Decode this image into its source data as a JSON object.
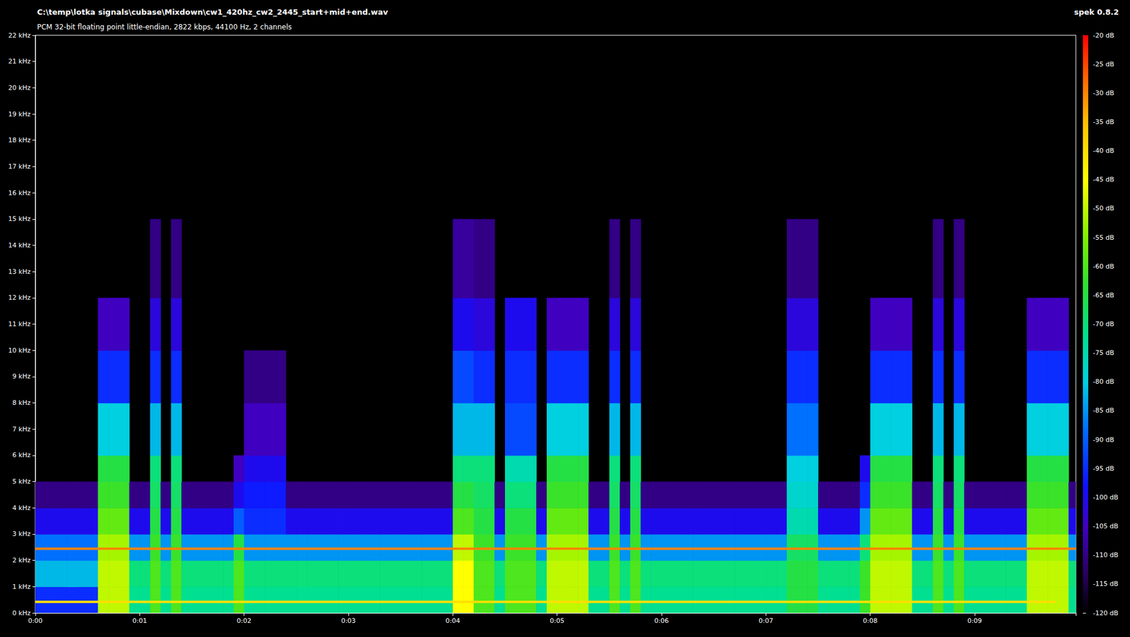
{
  "chart_data": {
    "type": "heatmap",
    "title": "C:\\temp\\lotka signals\\cubase\\Mixdown\\cw1_420hz_cw2_2445_start+mid+end.wav",
    "subtitle": "PCM 32-bit floating point little-endian, 2822 kbps, 44100 Hz, 2 channels",
    "software": "spek 0.8.2",
    "grid": false,
    "xlim": [
      0,
      9.97
    ],
    "xticks": [
      {
        "value": 0,
        "label": "0:00"
      },
      {
        "value": 1,
        "label": "0:01"
      },
      {
        "value": 2,
        "label": "0:02"
      },
      {
        "value": 3,
        "label": "0:03"
      },
      {
        "value": 4,
        "label": "0:04"
      },
      {
        "value": 5,
        "label": "0:05"
      },
      {
        "value": 6,
        "label": "0:06"
      },
      {
        "value": 7,
        "label": "0:07"
      },
      {
        "value": 8,
        "label": "0:08"
      },
      {
        "value": 9,
        "label": "0:09"
      }
    ],
    "ylim": [
      0,
      22
    ],
    "yticks": [
      {
        "value": 0,
        "label": "0 kHz"
      },
      {
        "value": 1,
        "label": "1 kHz"
      },
      {
        "value": 2,
        "label": "2 kHz"
      },
      {
        "value": 3,
        "label": "3 kHz"
      },
      {
        "value": 4,
        "label": "4 kHz"
      },
      {
        "value": 5,
        "label": "5 kHz"
      },
      {
        "value": 6,
        "label": "6 kHz"
      },
      {
        "value": 7,
        "label": "7 kHz"
      },
      {
        "value": 8,
        "label": "8 kHz"
      },
      {
        "value": 9,
        "label": "9 kHz"
      },
      {
        "value": 10,
        "label": "10 kHz"
      },
      {
        "value": 11,
        "label": "11 kHz"
      },
      {
        "value": 12,
        "label": "12 kHz"
      },
      {
        "value": 13,
        "label": "13 kHz"
      },
      {
        "value": 14,
        "label": "14 kHz"
      },
      {
        "value": 15,
        "label": "15 kHz"
      },
      {
        "value": 16,
        "label": "16 kHz"
      },
      {
        "value": 17,
        "label": "17 kHz"
      },
      {
        "value": 18,
        "label": "18 kHz"
      },
      {
        "value": 19,
        "label": "19 kHz"
      },
      {
        "value": 20,
        "label": "20 kHz"
      },
      {
        "value": 21,
        "label": "21 kHz"
      },
      {
        "value": 22,
        "label": "22 kHz"
      }
    ],
    "time_edges": [
      0,
      0.1,
      0.2,
      0.3,
      0.4,
      0.5,
      0.6,
      0.7,
      0.8,
      0.9,
      1,
      1.1,
      1.2,
      1.3,
      1.4,
      1.5,
      1.6,
      1.7,
      1.8,
      1.9,
      2,
      2.1,
      2.2,
      2.3,
      2.4,
      2.5,
      2.6,
      2.7,
      2.8,
      2.9,
      3,
      3.1,
      3.2,
      3.3,
      3.4,
      3.5,
      3.6,
      3.7,
      3.8,
      3.9,
      4,
      4.1,
      4.2,
      4.3,
      4.4,
      4.5,
      4.6,
      4.7,
      4.8,
      4.9,
      5,
      5.1,
      5.2,
      5.3,
      5.4,
      5.5,
      5.6,
      5.7,
      5.8,
      5.9,
      6,
      6.1,
      6.2,
      6.3,
      6.4,
      6.5,
      6.6,
      6.7,
      6.8,
      6.9,
      7,
      7.1,
      7.2,
      7.3,
      7.4,
      7.5,
      7.6,
      7.7,
      7.8,
      7.9,
      8,
      8.1,
      8.2,
      8.3,
      8.4,
      8.5,
      8.6,
      8.7,
      8.8,
      8.9,
      9,
      9.1,
      9.2,
      9.3,
      9.4,
      9.5,
      9.6,
      9.7,
      9.8,
      9.9,
      10
    ],
    "freq_edges": [
      0,
      1,
      2,
      3,
      4,
      5,
      6,
      8,
      10,
      12,
      15
    ],
    "db": [
      [
        -95,
        -95,
        -95,
        -95,
        -95,
        -95,
        -50,
        -50,
        -50,
        -72,
        -72,
        -60,
        -72,
        -60,
        -72,
        -72,
        -72,
        -72,
        -72,
        -60,
        -72,
        -72,
        -72,
        -72,
        -72,
        -72,
        -72,
        -72,
        -72,
        -72,
        -72,
        -72,
        -72,
        -72,
        -72,
        -72,
        -72,
        -72,
        -72,
        -72,
        -45,
        -45,
        -60,
        -60,
        -72,
        -60,
        -60,
        -60,
        -72,
        -50,
        -50,
        -50,
        -50,
        -72,
        -72,
        -60,
        -72,
        -60,
        -72,
        -72,
        -72,
        -72,
        -72,
        -72,
        -72,
        -72,
        -72,
        -72,
        -72,
        -72,
        -72,
        -72,
        -65,
        -65,
        -65,
        -72,
        -72,
        -72,
        -72,
        -62,
        -50,
        -50,
        -50,
        -50,
        -72,
        -72,
        -60,
        -72,
        -60,
        -72,
        -72,
        -72,
        -72,
        -72,
        -72,
        -50,
        -50,
        -50,
        -50,
        -72
      ],
      [
        -82,
        -82,
        -82,
        -82,
        -82,
        -82,
        -50,
        -50,
        -50,
        -70,
        -70,
        -60,
        -70,
        -60,
        -70,
        -70,
        -70,
        -70,
        -70,
        -60,
        -70,
        -70,
        -70,
        -70,
        -70,
        -70,
        -70,
        -70,
        -70,
        -70,
        -70,
        -70,
        -70,
        -70,
        -70,
        -70,
        -70,
        -70,
        -70,
        -70,
        -45,
        -45,
        -60,
        -60,
        -70,
        -60,
        -60,
        -60,
        -70,
        -50,
        -50,
        -50,
        -50,
        -70,
        -70,
        -60,
        -70,
        -60,
        -70,
        -70,
        -70,
        -70,
        -70,
        -70,
        -70,
        -70,
        -70,
        -70,
        -70,
        -70,
        -70,
        -70,
        -65,
        -65,
        -65,
        -70,
        -70,
        -70,
        -70,
        -62,
        -50,
        -50,
        -50,
        -50,
        -70,
        -70,
        -60,
        -70,
        -60,
        -70,
        -70,
        -70,
        -70,
        -70,
        -70,
        -50,
        -50,
        -50,
        -50,
        -70
      ],
      [
        -88,
        -88,
        -88,
        -88,
        -88,
        -88,
        -52,
        -52,
        -52,
        -85,
        -85,
        -62,
        -85,
        -62,
        -85,
        -85,
        -85,
        -85,
        -85,
        -65,
        -85,
        -85,
        -85,
        -85,
        -85,
        -85,
        -85,
        -85,
        -85,
        -85,
        -85,
        -85,
        -85,
        -85,
        -85,
        -85,
        -85,
        -85,
        -85,
        -85,
        -50,
        -50,
        -62,
        -62,
        -85,
        -62,
        -62,
        -62,
        -85,
        -52,
        -52,
        -52,
        -52,
        -85,
        -85,
        -62,
        -85,
        -62,
        -85,
        -85,
        -85,
        -85,
        -85,
        -85,
        -85,
        -85,
        -85,
        -85,
        -85,
        -85,
        -85,
        -85,
        -68,
        -68,
        -68,
        -85,
        -85,
        -85,
        -85,
        -70,
        -52,
        -52,
        -52,
        -52,
        -85,
        -85,
        -62,
        -85,
        -62,
        -85,
        -85,
        -85,
        -85,
        -85,
        -85,
        -52,
        -52,
        -52,
        -52,
        -85
      ],
      [
        -100,
        -100,
        -100,
        -100,
        -100,
        -100,
        -58,
        -58,
        -58,
        -100,
        -100,
        -65,
        -100,
        -65,
        -100,
        -100,
        -100,
        -100,
        -100,
        -90,
        -95,
        -95,
        -95,
        -95,
        -100,
        -100,
        -100,
        -100,
        -100,
        -100,
        -100,
        -100,
        -100,
        -100,
        -100,
        -100,
        -100,
        -100,
        -100,
        -100,
        -60,
        -60,
        -65,
        -65,
        -100,
        -65,
        -65,
        -65,
        -100,
        -58,
        -58,
        -58,
        -58,
        -100,
        -100,
        -65,
        -100,
        -65,
        -100,
        -100,
        -100,
        -100,
        -100,
        -100,
        -100,
        -100,
        -100,
        -100,
        -100,
        -100,
        -100,
        -100,
        -75,
        -75,
        -75,
        -100,
        -100,
        -100,
        -100,
        -85,
        -58,
        -58,
        -58,
        -58,
        -100,
        -100,
        -65,
        -100,
        -65,
        -100,
        -100,
        -100,
        -100,
        -100,
        -100,
        -58,
        -58,
        -58,
        -58,
        -100
      ],
      [
        -110,
        -110,
        -110,
        -110,
        -110,
        -110,
        -62,
        -62,
        -62,
        -110,
        -110,
        -68,
        -110,
        -68,
        -110,
        -110,
        -110,
        -110,
        -110,
        -100,
        -97,
        -97,
        -97,
        -97,
        -110,
        -110,
        -110,
        -110,
        -110,
        -110,
        -110,
        -110,
        -110,
        -110,
        -110,
        -110,
        -110,
        -110,
        -110,
        -110,
        -65,
        -65,
        -68,
        -68,
        -110,
        -70,
        -70,
        -70,
        -110,
        -62,
        -62,
        -62,
        -62,
        -110,
        -110,
        -68,
        -110,
        -68,
        -110,
        -110,
        -110,
        -110,
        -110,
        -110,
        -110,
        -110,
        -110,
        -110,
        -110,
        -110,
        -110,
        -110,
        -78,
        -78,
        -78,
        -110,
        -110,
        -110,
        -110,
        -95,
        -62,
        -62,
        -62,
        -62,
        -110,
        -110,
        -68,
        -110,
        -68,
        -110,
        -110,
        -110,
        -110,
        -110,
        -110,
        -62,
        -62,
        -62,
        -62,
        -110
      ],
      [
        null,
        null,
        null,
        null,
        null,
        null,
        -65,
        -65,
        -65,
        null,
        null,
        -70,
        null,
        -70,
        null,
        null,
        null,
        null,
        null,
        -105,
        -100,
        -100,
        -100,
        -100,
        null,
        null,
        null,
        null,
        null,
        null,
        null,
        null,
        null,
        null,
        null,
        null,
        null,
        null,
        null,
        null,
        -70,
        -70,
        -70,
        -70,
        null,
        -75,
        -75,
        -75,
        null,
        -65,
        -65,
        -65,
        -65,
        null,
        null,
        -70,
        null,
        -70,
        null,
        null,
        null,
        null,
        null,
        null,
        null,
        null,
        null,
        null,
        null,
        null,
        null,
        null,
        -80,
        -80,
        -80,
        null,
        null,
        null,
        null,
        -100,
        -65,
        -65,
        -65,
        -65,
        null,
        null,
        -70,
        null,
        -70,
        null,
        null,
        null,
        null,
        null,
        null,
        -65,
        -65,
        -65,
        -65,
        null
      ],
      [
        null,
        null,
        null,
        null,
        null,
        null,
        -80,
        -80,
        -80,
        null,
        null,
        -82,
        null,
        -82,
        null,
        null,
        null,
        null,
        null,
        null,
        -105,
        -105,
        -105,
        -105,
        null,
        null,
        null,
        null,
        null,
        null,
        null,
        null,
        null,
        null,
        null,
        null,
        null,
        null,
        null,
        null,
        -82,
        -82,
        -82,
        -82,
        null,
        -92,
        -92,
        -92,
        null,
        -80,
        -80,
        -80,
        -80,
        null,
        null,
        -82,
        null,
        -82,
        null,
        null,
        null,
        null,
        null,
        null,
        null,
        null,
        null,
        null,
        null,
        null,
        null,
        null,
        -88,
        -88,
        -88,
        null,
        null,
        null,
        null,
        null,
        -80,
        -80,
        -80,
        -80,
        null,
        null,
        -82,
        null,
        -82,
        null,
        null,
        null,
        null,
        null,
        null,
        -80,
        -80,
        -80,
        -80,
        null
      ],
      [
        null,
        null,
        null,
        null,
        null,
        null,
        -95,
        -95,
        -95,
        null,
        null,
        -95,
        null,
        -95,
        null,
        null,
        null,
        null,
        null,
        null,
        -110,
        -110,
        -110,
        -110,
        null,
        null,
        null,
        null,
        null,
        null,
        null,
        null,
        null,
        null,
        null,
        null,
        null,
        null,
        null,
        null,
        -92,
        -92,
        -95,
        -95,
        null,
        -95,
        -95,
        -95,
        null,
        -95,
        -95,
        -95,
        -95,
        null,
        null,
        -95,
        null,
        -95,
        null,
        null,
        null,
        null,
        null,
        null,
        null,
        null,
        null,
        null,
        null,
        null,
        null,
        null,
        -95,
        -95,
        -95,
        null,
        null,
        null,
        null,
        null,
        -95,
        -95,
        -95,
        -95,
        null,
        null,
        -95,
        null,
        -95,
        null,
        null,
        null,
        null,
        null,
        null,
        -95,
        -95,
        -95,
        -95,
        null
      ],
      [
        null,
        null,
        null,
        null,
        null,
        null,
        -105,
        -105,
        -105,
        null,
        null,
        -102,
        null,
        -102,
        null,
        null,
        null,
        null,
        null,
        null,
        null,
        null,
        null,
        null,
        null,
        null,
        null,
        null,
        null,
        null,
        null,
        null,
        null,
        null,
        null,
        null,
        null,
        null,
        null,
        null,
        -100,
        -100,
        -102,
        -102,
        null,
        -100,
        -100,
        -100,
        null,
        -105,
        -105,
        -105,
        -105,
        null,
        null,
        -102,
        null,
        -102,
        null,
        null,
        null,
        null,
        null,
        null,
        null,
        null,
        null,
        null,
        null,
        null,
        null,
        null,
        -102,
        -102,
        -102,
        null,
        null,
        null,
        null,
        null,
        -105,
        -105,
        -105,
        -105,
        null,
        null,
        -102,
        null,
        -102,
        null,
        null,
        null,
        null,
        null,
        null,
        -105,
        -105,
        -105,
        -105,
        null
      ],
      [
        null,
        null,
        null,
        null,
        null,
        null,
        null,
        null,
        null,
        null,
        null,
        -110,
        null,
        -110,
        null,
        null,
        null,
        null,
        null,
        null,
        null,
        null,
        null,
        null,
        null,
        null,
        null,
        null,
        null,
        null,
        null,
        null,
        null,
        null,
        null,
        null,
        null,
        null,
        null,
        null,
        -108,
        -108,
        -110,
        -110,
        null,
        null,
        null,
        null,
        null,
        null,
        null,
        null,
        null,
        null,
        null,
        -110,
        null,
        -110,
        null,
        null,
        null,
        null,
        null,
        null,
        null,
        null,
        null,
        null,
        null,
        null,
        null,
        null,
        -110,
        -110,
        -110,
        null,
        null,
        null,
        null,
        null,
        null,
        null,
        null,
        null,
        null,
        null,
        -110,
        null,
        -110,
        null,
        null,
        null,
        null,
        null,
        null,
        null,
        null,
        null,
        null,
        null
      ]
    ],
    "tones": [
      {
        "freq": 0.42,
        "start": 0,
        "end": 9.78,
        "level": -40
      },
      {
        "freq": 2.445,
        "start": 0,
        "end": 9.97,
        "level": -30
      }
    ],
    "colorbar": {
      "range": [
        -120,
        -20
      ],
      "ticks": [
        {
          "value": -20,
          "label": "-20 dB"
        },
        {
          "value": -25,
          "label": "-25 dB"
        },
        {
          "value": -30,
          "label": "-30 dB"
        },
        {
          "value": -35,
          "label": "-35 dB"
        },
        {
          "value": -40,
          "label": "-40 dB"
        },
        {
          "value": -45,
          "label": "-45 dB"
        },
        {
          "value": -50,
          "label": "-50 dB"
        },
        {
          "value": -55,
          "label": "-55 dB"
        },
        {
          "value": -60,
          "label": "-60 dB"
        },
        {
          "value": -65,
          "label": "-65 dB"
        },
        {
          "value": -70,
          "label": "-70 dB"
        },
        {
          "value": -75,
          "label": "-75 dB"
        },
        {
          "value": -80,
          "label": "-80 dB"
        },
        {
          "value": -85,
          "label": "-85 dB"
        },
        {
          "value": -90,
          "label": "-90 dB"
        },
        {
          "value": -95,
          "label": "-95 dB"
        },
        {
          "value": -100,
          "label": "-100 dB"
        },
        {
          "value": -105,
          "label": "-105 dB"
        },
        {
          "value": -110,
          "label": "-110 dB"
        },
        {
          "value": -115,
          "label": "-115 dB"
        },
        {
          "value": -120,
          "label": "-120 dB"
        }
      ]
    }
  }
}
